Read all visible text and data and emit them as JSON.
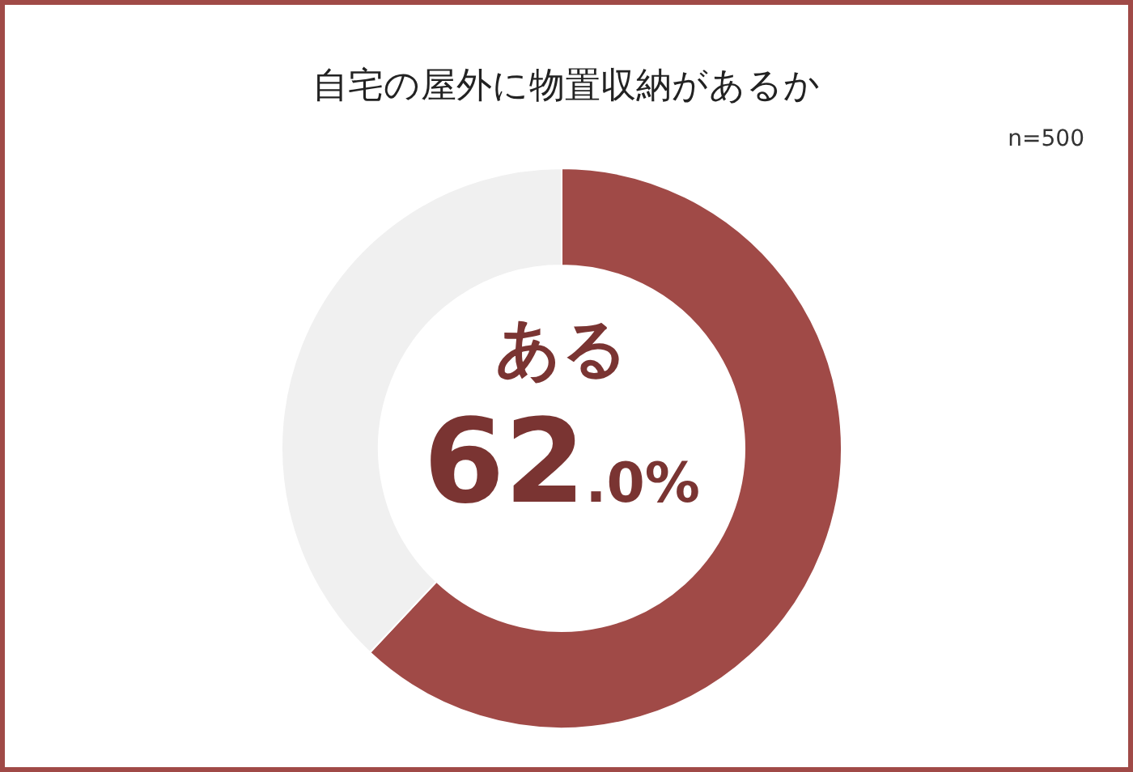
{
  "chart_data": {
    "type": "donut",
    "title": "自宅の屋外に物置収納があるか",
    "annotations": [
      "n=500"
    ],
    "categories": [
      "ある",
      null
    ],
    "values": [
      62.0,
      38.0
    ],
    "colors": [
      "#a04a47",
      "#f0f0f0"
    ],
    "value_labels": [
      "62.0%",
      null
    ]
  }
}
